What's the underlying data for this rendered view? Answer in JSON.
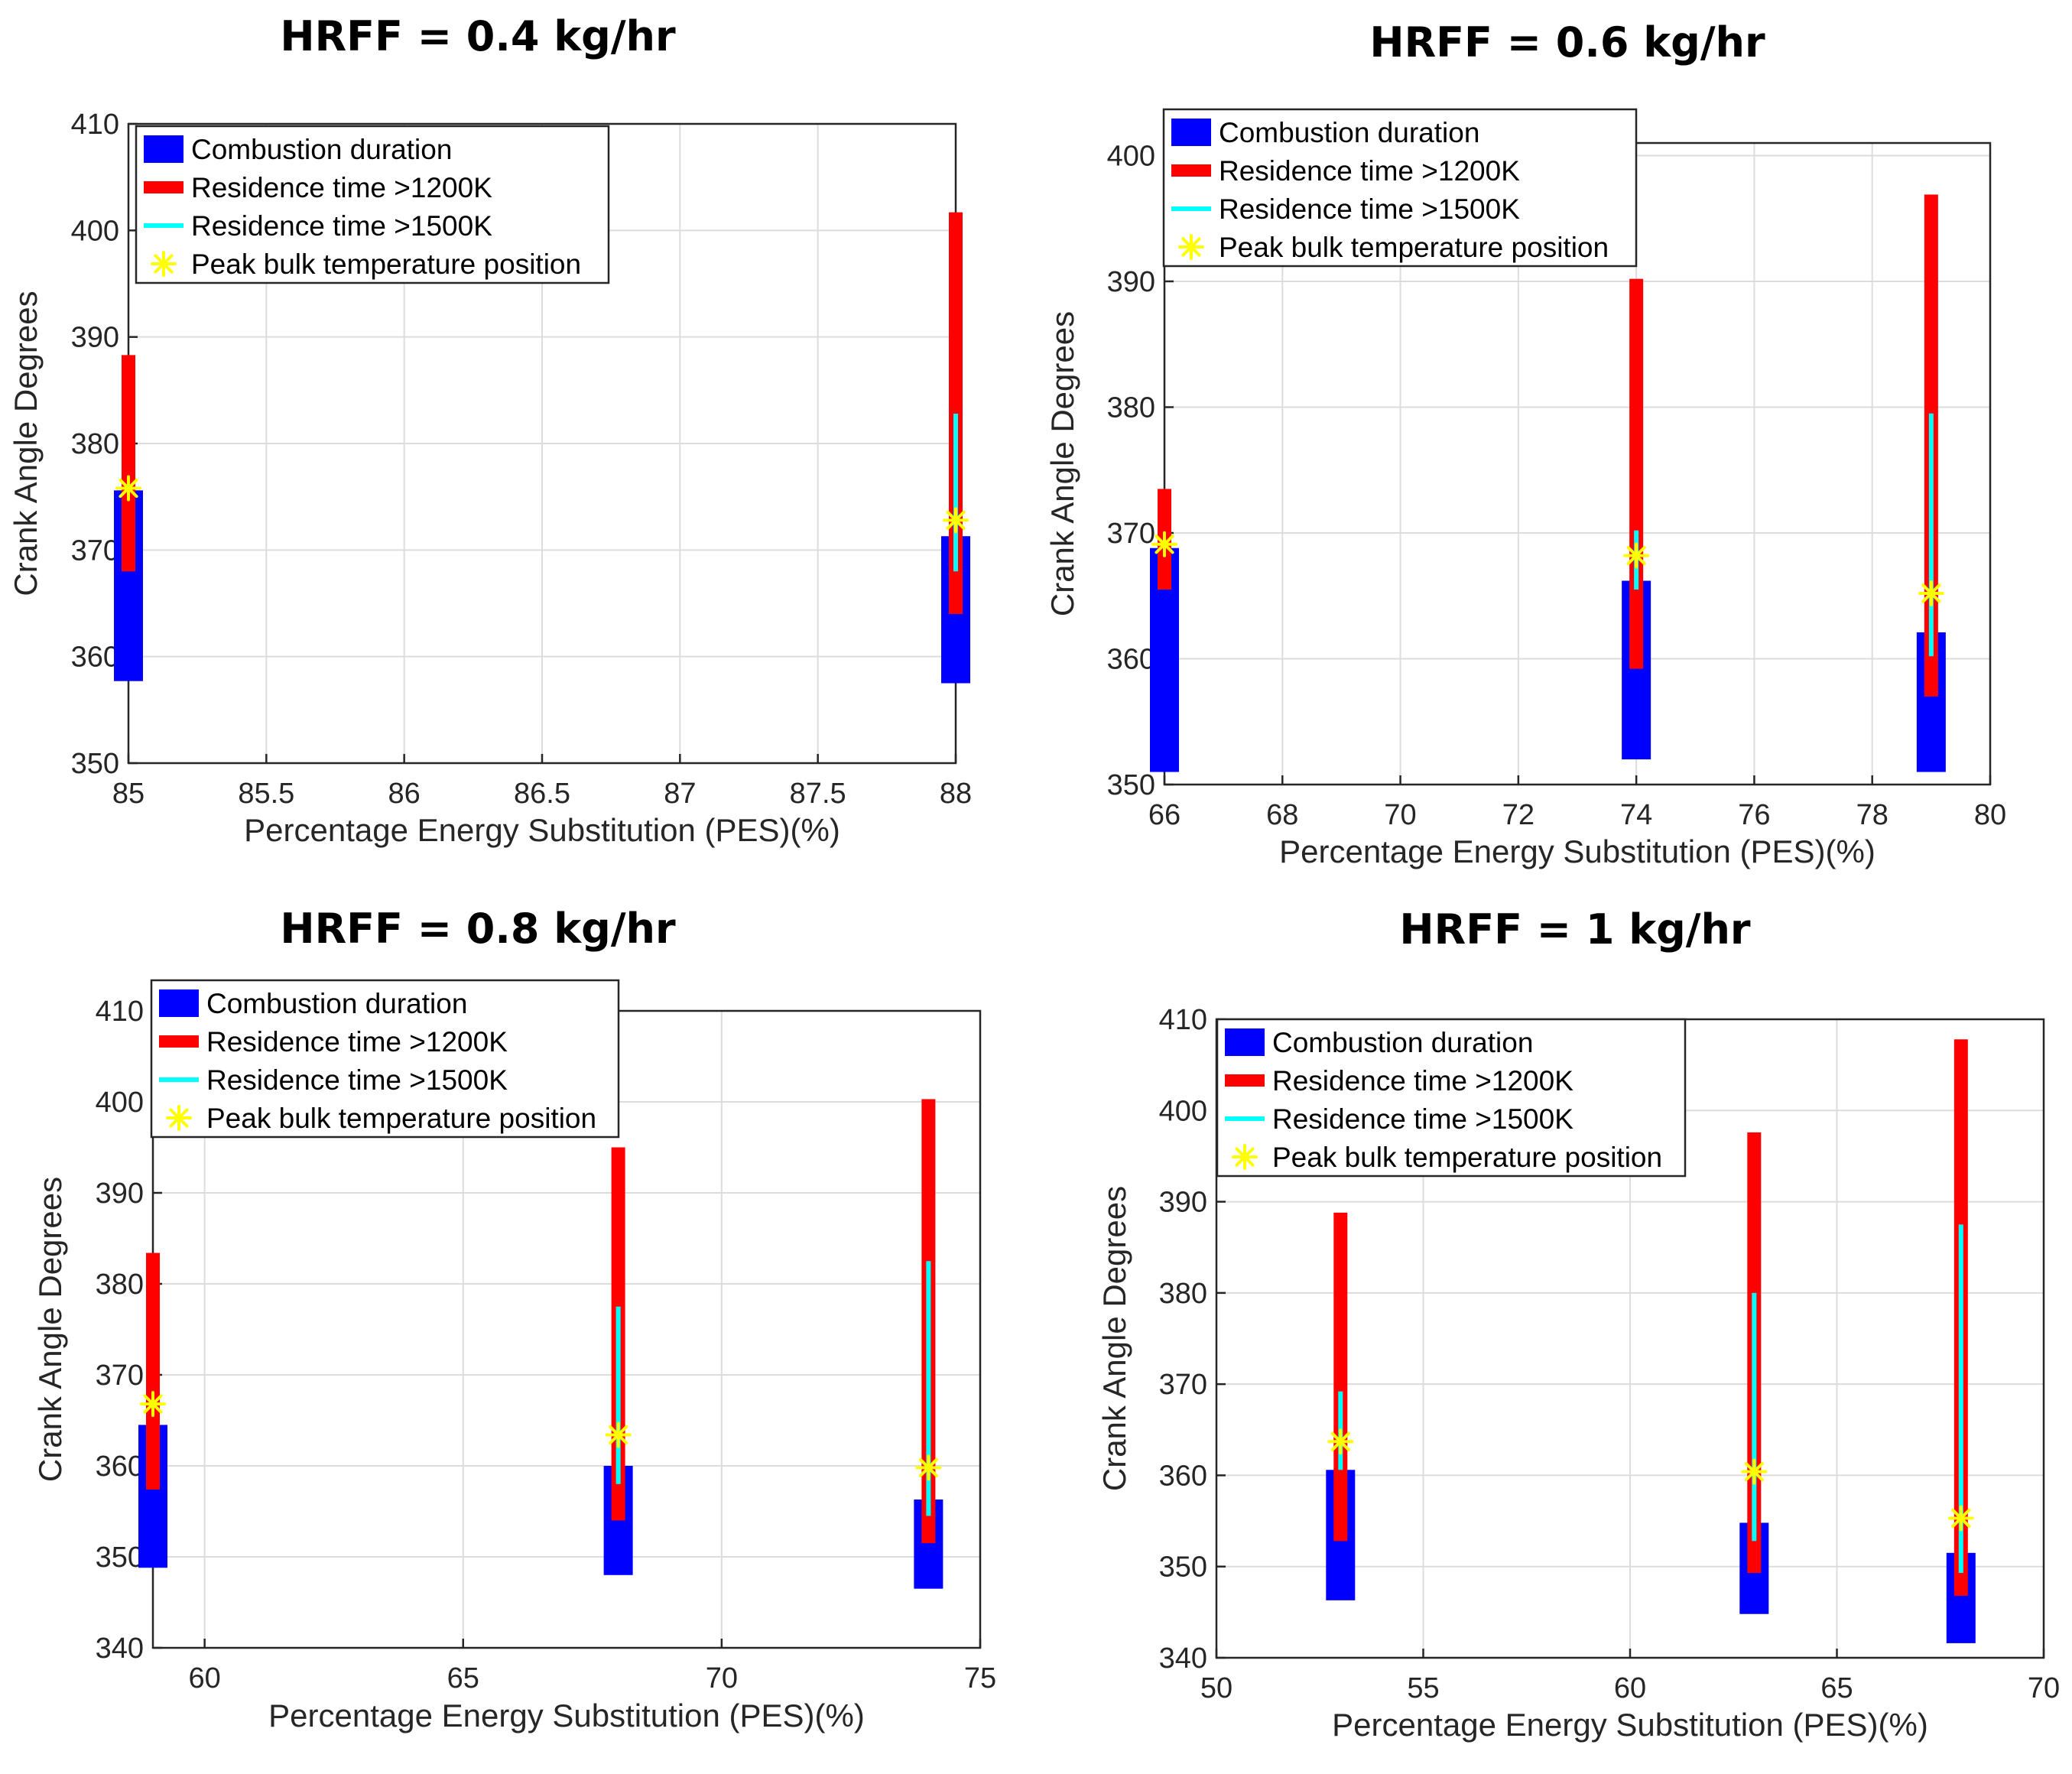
{
  "legend": {
    "combustion": "Combustion duration",
    "res1200": "Residence time >1200K",
    "res1500": "Residence time >1500K",
    "peak": "Peak bulk temperature position"
  },
  "colors": {
    "combustion": "#0000ff",
    "res1200": "#ff0000",
    "res1500": "#00ffff",
    "peak": "#ffff00"
  },
  "chart_data": [
    {
      "type": "range-bar",
      "title": "HRFF = 0.4 kg/hr",
      "xlabel": "Percentage Energy Substitution (PES)(%)",
      "ylabel": "Crank Angle Degrees",
      "xlim": [
        85,
        88
      ],
      "ylim": [
        350,
        410
      ],
      "xticks": [
        "85",
        "85.5",
        "86",
        "86.5",
        "87",
        "87.5",
        "88"
      ],
      "yticks": [
        "350",
        "360",
        "370",
        "380",
        "390",
        "400",
        "410"
      ],
      "grid": true,
      "legend_position": "top-left",
      "points": [
        {
          "x": 85,
          "combustion": [
            357.7,
            375.6
          ],
          "res1200": [
            368,
            388.3
          ],
          "res1500": [
            375.5,
            375.8
          ],
          "peak": 375.8
        },
        {
          "x": 88,
          "combustion": [
            357.5,
            371.3
          ],
          "res1200": [
            364,
            401.7
          ],
          "res1500": [
            368,
            382.8
          ],
          "peak": 372.8
        }
      ]
    },
    {
      "type": "range-bar",
      "title": "HRFF = 0.6 kg/hr",
      "xlabel": "Percentage Energy Substitution (PES)(%)",
      "ylabel": "Crank Angle Degrees",
      "xlim": [
        66,
        80
      ],
      "ylim": [
        350,
        401
      ],
      "xticks": [
        "66",
        "68",
        "70",
        "72",
        "74",
        "76",
        "78",
        "80"
      ],
      "yticks": [
        "350",
        "360",
        "370",
        "380",
        "390",
        "400"
      ],
      "grid": true,
      "legend_position": "top-left",
      "points": [
        {
          "x": 66,
          "combustion": [
            351,
            368.8
          ],
          "res1200": [
            365.5,
            373.5
          ],
          "res1500": [
            368.9,
            369.2
          ],
          "peak": 369.1
        },
        {
          "x": 74,
          "combustion": [
            352,
            366.2
          ],
          "res1200": [
            359.2,
            390.2
          ],
          "res1500": [
            365.5,
            370.2
          ],
          "peak": 368.2
        },
        {
          "x": 79,
          "combustion": [
            351,
            362.1
          ],
          "res1200": [
            357,
            396.9
          ],
          "res1500": [
            360.2,
            379.5
          ],
          "peak": 365.2
        }
      ]
    },
    {
      "type": "range-bar",
      "title": "HRFF = 0.8 kg/hr",
      "xlabel": "Percentage Energy Substitution (PES)(%)",
      "ylabel": "Crank Angle Degrees",
      "xlim": [
        59,
        75
      ],
      "ylim": [
        340,
        410
      ],
      "xticks": [
        "60",
        "65",
        "70",
        "75"
      ],
      "yticks": [
        "340",
        "350",
        "360",
        "370",
        "380",
        "390",
        "400",
        "410"
      ],
      "grid": true,
      "legend_position": "top-left",
      "points": [
        {
          "x": 59,
          "combustion": [
            348.8,
            364.5
          ],
          "res1200": [
            357.4,
            383.4
          ],
          "res1500": [
            366.5,
            367
          ],
          "peak": 366.8
        },
        {
          "x": 68,
          "combustion": [
            348,
            360
          ],
          "res1200": [
            354,
            395
          ],
          "res1500": [
            358,
            377.5
          ],
          "peak": 363.4
        },
        {
          "x": 74,
          "combustion": [
            346.5,
            356.3
          ],
          "res1200": [
            351.5,
            400.3
          ],
          "res1500": [
            354.5,
            382.5
          ],
          "peak": 359.8
        }
      ]
    },
    {
      "type": "range-bar",
      "title": "HRFF = 1 kg/hr",
      "xlabel": "Percentage Energy Substitution (PES)(%)",
      "ylabel": "Crank Angle Degrees",
      "xlim": [
        50,
        70
      ],
      "ylim": [
        340,
        410
      ],
      "xticks": [
        "50",
        "55",
        "60",
        "65",
        "70"
      ],
      "yticks": [
        "340",
        "350",
        "360",
        "370",
        "380",
        "390",
        "400",
        "410"
      ],
      "grid": true,
      "legend_position": "top-left",
      "points": [
        {
          "x": 53,
          "combustion": [
            346.3,
            360.6
          ],
          "res1200": [
            352.8,
            388.8
          ],
          "res1500": [
            360.6,
            369.2
          ],
          "peak": 363.7
        },
        {
          "x": 63,
          "combustion": [
            344.8,
            354.8
          ],
          "res1200": [
            349.3,
            397.6
          ],
          "res1500": [
            352.8,
            380
          ],
          "peak": 360.4
        },
        {
          "x": 68,
          "combustion": [
            341.6,
            351.5
          ],
          "res1200": [
            346.8,
            407.8
          ],
          "res1500": [
            349.3,
            387.5
          ],
          "peak": 355.3
        }
      ]
    }
  ]
}
